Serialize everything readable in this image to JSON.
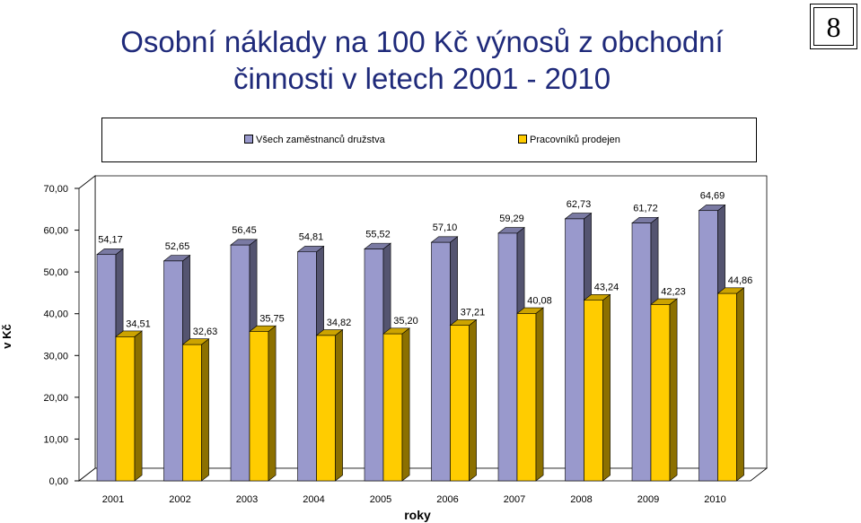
{
  "page": {
    "title_line1": "Osobní náklady na 100 Kč výnosů z obchodní",
    "title_line2": "činnosti v letech 2001 - 2010",
    "slide_number": "8"
  },
  "colors": {
    "series1": "#9999cc",
    "series2": "#ffcc00"
  },
  "chart_data": {
    "type": "bar",
    "title": "Osobní náklady na 100 Kč výnosů z obchodní činnosti v letech 2001 - 2010",
    "xlabel": "roky",
    "ylabel": "v Kč",
    "ylim": [
      0,
      70
    ],
    "yticks": [
      "0,00",
      "10,00",
      "20,00",
      "30,00",
      "40,00",
      "50,00",
      "60,00",
      "70,00"
    ],
    "categories": [
      "2001",
      "2002",
      "2003",
      "2004",
      "2005",
      "2006",
      "2007",
      "2008",
      "2009",
      "2010"
    ],
    "series": [
      {
        "name": "Všech zaměstnanců družstva",
        "values": [
          54.17,
          52.65,
          56.45,
          54.81,
          55.52,
          57.1,
          59.29,
          62.73,
          61.72,
          64.69
        ],
        "labels": [
          "54,17",
          "52,65",
          "56,45",
          "54,81",
          "55,52",
          "57,10",
          "59,29",
          "62,73",
          "61,72",
          "64,69"
        ]
      },
      {
        "name": "Pracovníků prodejen",
        "values": [
          34.51,
          32.63,
          35.75,
          34.82,
          35.2,
          37.21,
          40.08,
          43.24,
          42.23,
          44.86
        ],
        "labels": [
          "34,51",
          "32,63",
          "35,75",
          "34,82",
          "35,20",
          "37,21",
          "40,08",
          "43,24",
          "42,23",
          "44,86"
        ]
      }
    ],
    "grid": false,
    "legend_position": "top",
    "style": "3d-clustered-column"
  }
}
